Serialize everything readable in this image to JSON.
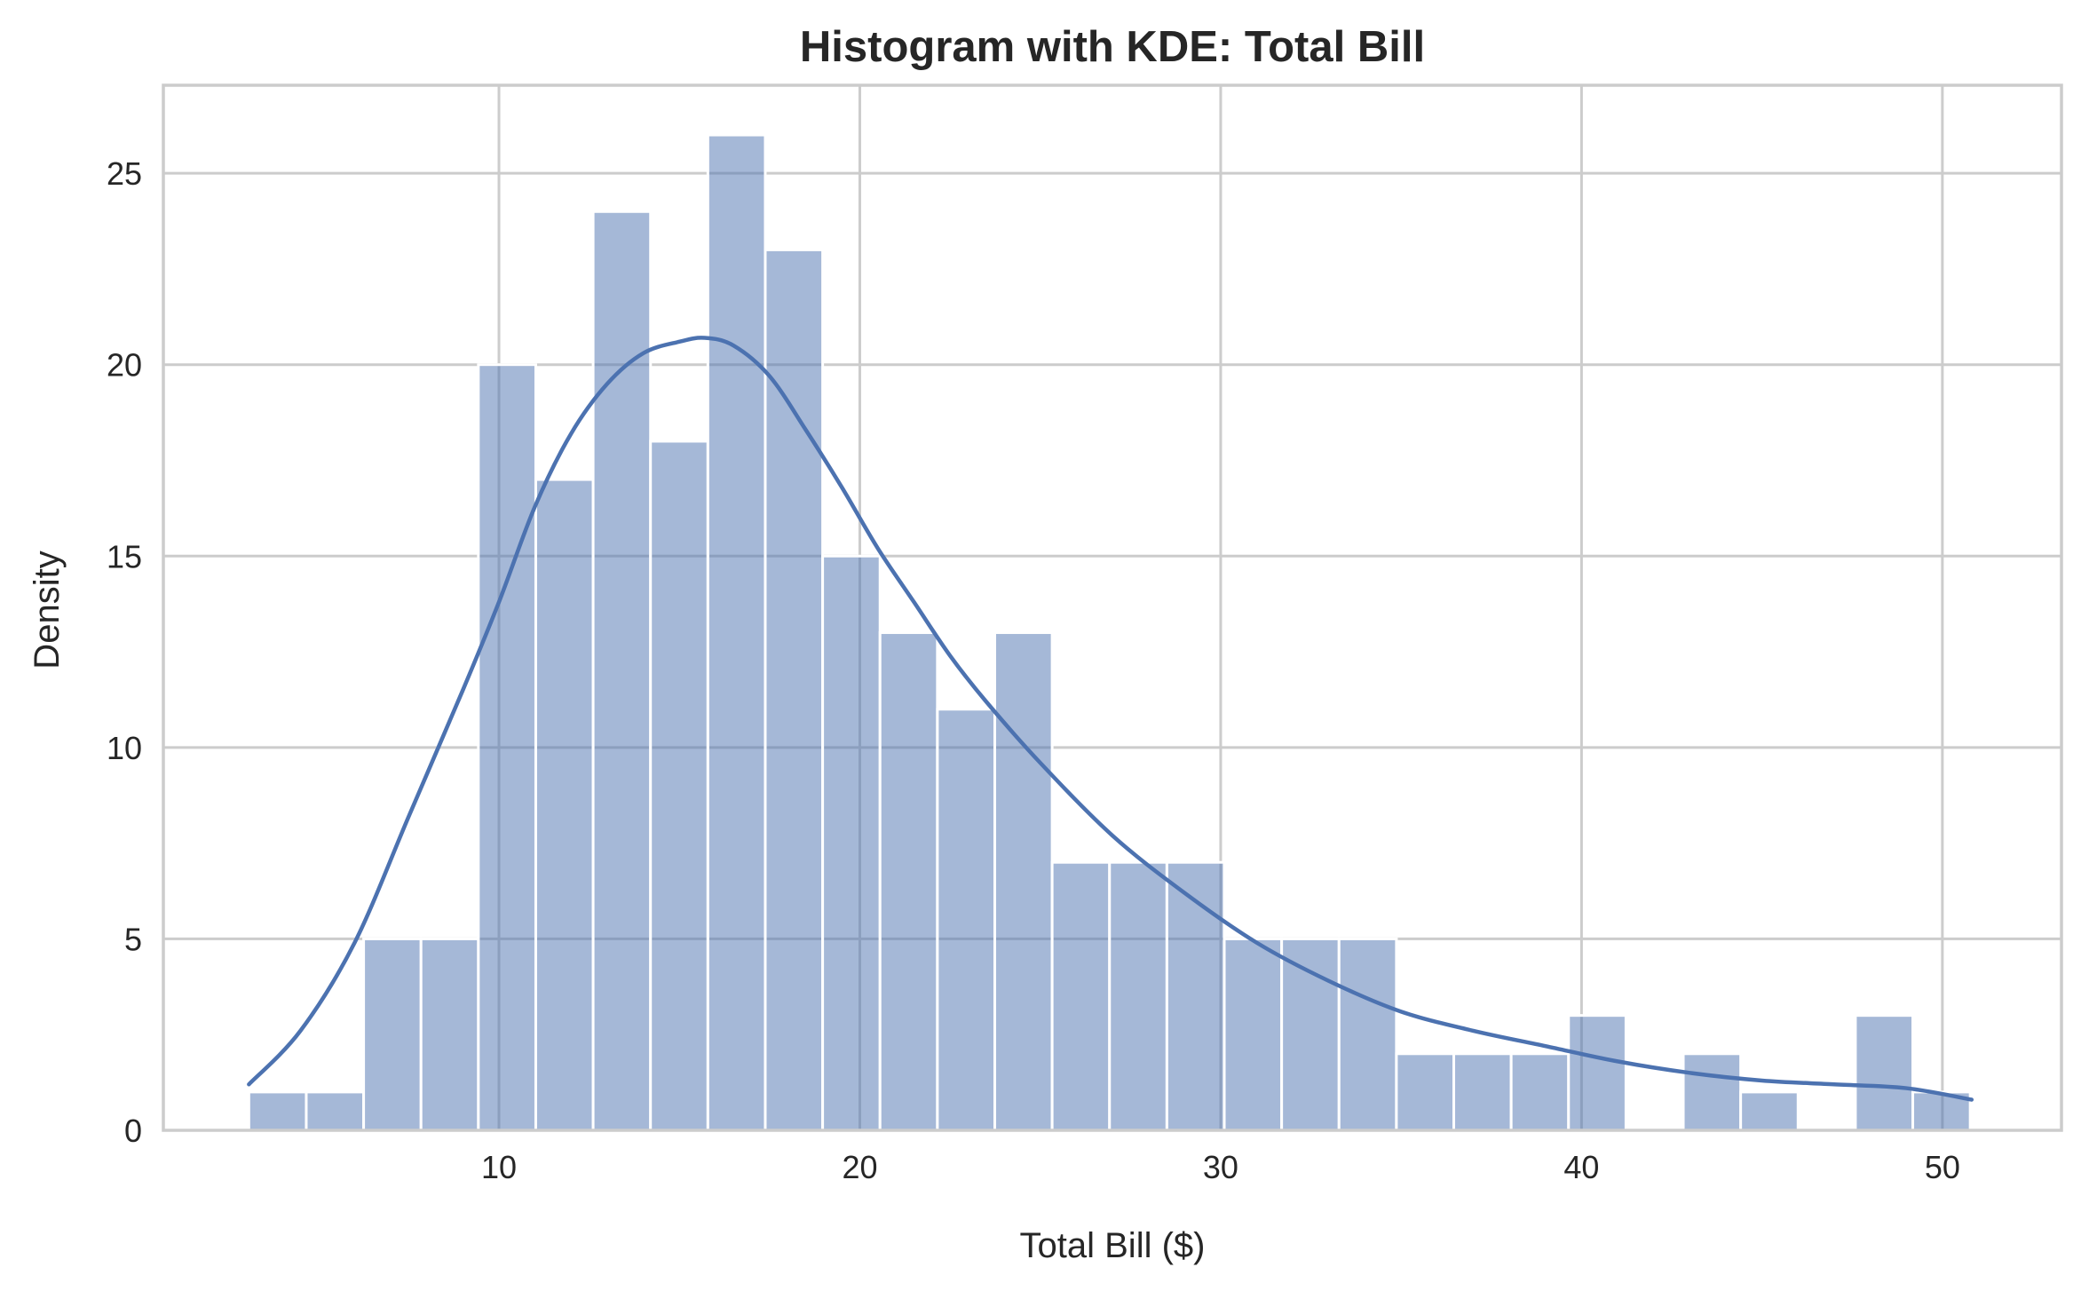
{
  "chart_data": {
    "type": "bar",
    "subtype": "histogram-with-kde",
    "title": "Histogram with KDE: Total Bill",
    "xlabel": "Total Bill ($)",
    "ylabel": "Density",
    "xlim": [
      0.7,
      53.3
    ],
    "ylim": [
      0,
      27.3
    ],
    "xticks": [
      10,
      20,
      30,
      40,
      50
    ],
    "yticks": [
      0,
      5,
      10,
      15,
      20,
      25
    ],
    "grid": true,
    "bin_edges": [
      3.07,
      4.66,
      6.25,
      7.84,
      9.43,
      11.02,
      12.61,
      14.2,
      15.79,
      17.38,
      18.97,
      20.56,
      22.15,
      23.74,
      25.33,
      26.92,
      28.51,
      30.1,
      31.69,
      33.28,
      34.87,
      36.46,
      38.05,
      39.64,
      41.23,
      42.82,
      44.41,
      46.0,
      47.59,
      49.18,
      50.77
    ],
    "counts": [
      1,
      1,
      5,
      5,
      20,
      17,
      24,
      18,
      26,
      23,
      15,
      13,
      11,
      13,
      7,
      7,
      7,
      5,
      5,
      5,
      2,
      2,
      2,
      3,
      0,
      2,
      1,
      0,
      3,
      1
    ],
    "kde": {
      "color": "#4c72b0",
      "x": [
        3.07,
        4.5,
        6,
        7.5,
        9,
        10,
        11,
        12,
        13,
        14,
        15,
        15.7,
        16.5,
        17.5,
        18.5,
        19.5,
        20.5,
        21.5,
        22.5,
        23.5,
        25,
        27,
        29,
        31,
        33,
        35,
        37,
        39,
        41,
        43,
        45,
        47,
        49,
        50.81
      ],
      "y": [
        1.2,
        2.6,
        4.9,
        8.2,
        11.5,
        13.8,
        16.3,
        18.2,
        19.5,
        20.3,
        20.6,
        20.7,
        20.5,
        19.7,
        18.3,
        16.8,
        15.2,
        13.8,
        12.4,
        11.2,
        9.6,
        7.7,
        6.2,
        4.9,
        3.9,
        3.1,
        2.6,
        2.2,
        1.8,
        1.5,
        1.3,
        1.2,
        1.1,
        0.8
      ]
    },
    "bar_color": "#4c72b0",
    "bar_alpha": 0.5
  }
}
